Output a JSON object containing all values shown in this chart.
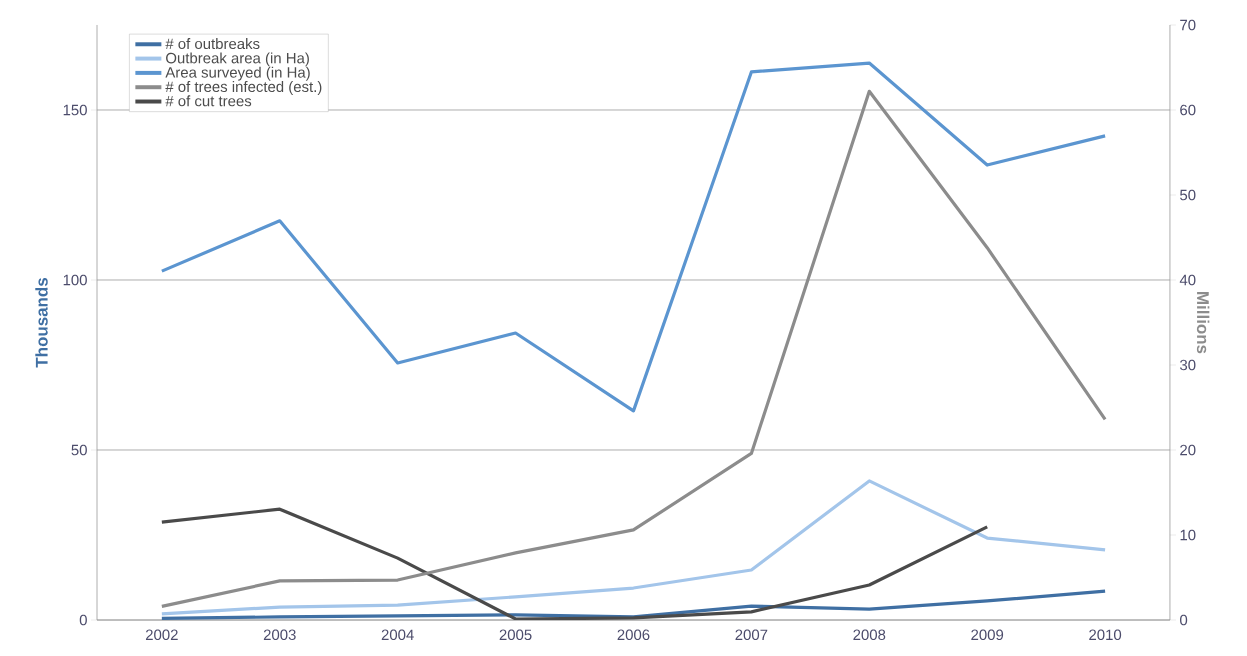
{
  "chart_data": {
    "type": "line",
    "ylabel": "Thousands",
    "y2label": "Millions",
    "categories": [
      "2002",
      "2003",
      "2004",
      "2005",
      "2006",
      "2007",
      "2008",
      "2009",
      "2010"
    ],
    "series": [
      {
        "name": "# of outbreaks",
        "color": "#3f6fa3",
        "values": [
          0.5,
          0.9,
          1.2,
          1.5,
          0.9,
          4.1,
          3.2,
          5.6,
          8.5
        ]
      },
      {
        "name": "Outbreak area (in Ha)",
        "color": "#a3c5ea",
        "values": [
          1.8,
          3.8,
          4.4,
          6.8,
          9.4,
          14.7,
          40.9,
          24.1,
          20.6
        ]
      },
      {
        "name": "Area surveyed (in Ha)",
        "color": "#5b95d0",
        "values": [
          102.6,
          117.4,
          75.6,
          84.4,
          61.5,
          161.2,
          163.8,
          133.8,
          142.4
        ]
      },
      {
        "name": "# of trees infected (est.)",
        "color": "#8c8c8c",
        "axis": "y2",
        "values": [
          1.6,
          4.6,
          4.7,
          7.9,
          10.6,
          19.6,
          62.2,
          43.8,
          23.6
        ]
      },
      {
        "name": "# of cut trees",
        "color": "#4a4a4a",
        "values": [
          28.8,
          32.6,
          18.2,
          0.3,
          0.6,
          2.4,
          10.3,
          27.4,
          null
        ]
      }
    ],
    "ylim": [
      0,
      175
    ],
    "yticks": [
      0,
      50,
      100,
      150
    ],
    "y2lim": [
      0,
      70
    ],
    "y2ticks": [
      0,
      10,
      20,
      30,
      40,
      50,
      60,
      70
    ],
    "grid": "y",
    "legend": "top left",
    "marker": "none",
    "line_style": "solid"
  }
}
